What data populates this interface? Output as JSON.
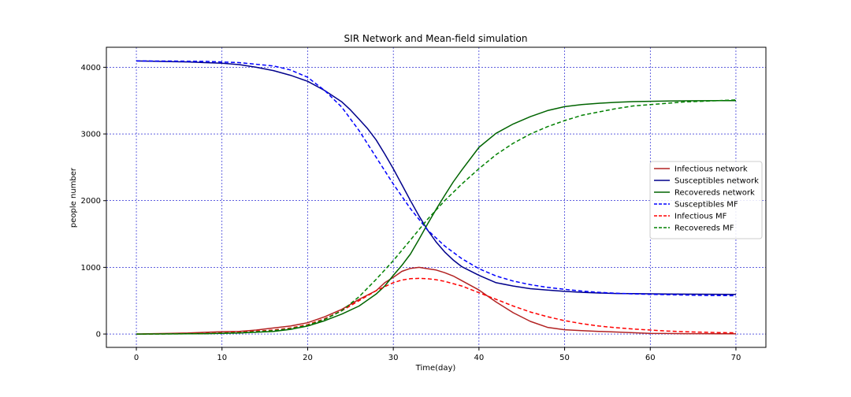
{
  "chart_data": {
    "type": "line",
    "title": "SIR Network and Mean-field simulation",
    "xlabel": "Time(day)",
    "ylabel": "people number",
    "xlim": [
      -3.5,
      73.5
    ],
    "ylim": [
      -200,
      4300
    ],
    "xticks": [
      0,
      10,
      20,
      30,
      40,
      50,
      60,
      70
    ],
    "yticks": [
      0,
      1000,
      2000,
      3000,
      4000
    ],
    "grid": true,
    "grid_color": "#0000cc",
    "legend_position": "center-right",
    "series": [
      {
        "name": "Infectious network",
        "color": "#b22222",
        "dash": "solid",
        "x": [
          0,
          2,
          4,
          6,
          8,
          10,
          12,
          14,
          16,
          18,
          20,
          22,
          24,
          26,
          28,
          29,
          30,
          31,
          32,
          33,
          34,
          35,
          36,
          37,
          38,
          40,
          42,
          44,
          46,
          48,
          50,
          52,
          54,
          56,
          58,
          60,
          62,
          64,
          66,
          68,
          70
        ],
        "y": [
          0,
          5,
          10,
          15,
          25,
          35,
          40,
          60,
          90,
          120,
          170,
          260,
          370,
          520,
          650,
          770,
          850,
          940,
          985,
          1000,
          980,
          960,
          920,
          870,
          800,
          660,
          480,
          320,
          190,
          100,
          65,
          50,
          40,
          30,
          20,
          10,
          8,
          6,
          5,
          4,
          3
        ]
      },
      {
        "name": "Susceptibles network",
        "color": "#00008b",
        "dash": "solid",
        "x": [
          0,
          2,
          4,
          6,
          8,
          10,
          12,
          14,
          16,
          18,
          20,
          22,
          24,
          25,
          26,
          27,
          28,
          29,
          30,
          31,
          32,
          33,
          34,
          35,
          36,
          37,
          38,
          40,
          42,
          44,
          46,
          48,
          50,
          52,
          54,
          56,
          58,
          60,
          62,
          64,
          66,
          68,
          70
        ],
        "y": [
          4095,
          4090,
          4085,
          4080,
          4070,
          4060,
          4040,
          4000,
          3950,
          3880,
          3790,
          3650,
          3480,
          3360,
          3220,
          3080,
          2910,
          2700,
          2480,
          2240,
          2000,
          1770,
          1560,
          1380,
          1230,
          1110,
          1010,
          880,
          770,
          720,
          680,
          660,
          640,
          625,
          615,
          608,
          605,
          603,
          600,
          598,
          597,
          596,
          595
        ]
      },
      {
        "name": "Recovereds network",
        "color": "#006400",
        "dash": "solid",
        "x": [
          0,
          4,
          8,
          12,
          16,
          18,
          20,
          22,
          24,
          26,
          28,
          29,
          30,
          31,
          32,
          33,
          34,
          35,
          36,
          37,
          38,
          40,
          42,
          44,
          46,
          48,
          50,
          52,
          54,
          56,
          58,
          60,
          62,
          64,
          66,
          68,
          70
        ],
        "y": [
          0,
          2,
          5,
          15,
          40,
          70,
          120,
          200,
          300,
          420,
          600,
          720,
          880,
          1030,
          1200,
          1420,
          1650,
          1870,
          2080,
          2280,
          2460,
          2800,
          3010,
          3150,
          3260,
          3350,
          3410,
          3440,
          3460,
          3475,
          3485,
          3490,
          3495,
          3497,
          3498,
          3499,
          3500
        ]
      },
      {
        "name": "Susceptibles MF",
        "color": "#0000ff",
        "dash": "dashed",
        "x": [
          0,
          4,
          8,
          12,
          16,
          18,
          20,
          22,
          24,
          26,
          28,
          30,
          32,
          34,
          36,
          38,
          40,
          42,
          44,
          46,
          48,
          50,
          52,
          54,
          56,
          58,
          60,
          62,
          64,
          66,
          68,
          70
        ],
        "y": [
          4095,
          4093,
          4088,
          4070,
          4020,
          3960,
          3850,
          3650,
          3400,
          3050,
          2650,
          2250,
          1880,
          1560,
          1320,
          1130,
          980,
          870,
          795,
          740,
          700,
          670,
          645,
          625,
          612,
          602,
          595,
          590,
          585,
          580,
          577,
          575
        ]
      },
      {
        "name": "Infectious MF",
        "color": "#ff0000",
        "dash": "dashed",
        "x": [
          0,
          4,
          8,
          12,
          16,
          18,
          20,
          22,
          24,
          26,
          28,
          30,
          31,
          32,
          33,
          34,
          35,
          36,
          38,
          40,
          42,
          44,
          46,
          48,
          50,
          52,
          54,
          56,
          58,
          60,
          62,
          64,
          66,
          68,
          70
        ],
        "y": [
          0,
          3,
          8,
          25,
          60,
          90,
          140,
          230,
          350,
          500,
          650,
          770,
          810,
          830,
          835,
          830,
          815,
          790,
          720,
          620,
          520,
          420,
          330,
          260,
          200,
          155,
          120,
          95,
          75,
          60,
          45,
          35,
          28,
          22,
          18
        ]
      },
      {
        "name": "Recovereds MF",
        "color": "#008000",
        "dash": "dashed",
        "x": [
          0,
          4,
          8,
          12,
          16,
          18,
          20,
          22,
          24,
          26,
          28,
          30,
          32,
          34,
          36,
          38,
          40,
          42,
          44,
          46,
          48,
          50,
          52,
          54,
          56,
          58,
          60,
          62,
          64,
          66,
          68,
          70
        ],
        "y": [
          0,
          2,
          6,
          20,
          50,
          80,
          130,
          220,
          350,
          560,
          820,
          1100,
          1410,
          1720,
          2000,
          2250,
          2480,
          2690,
          2860,
          3000,
          3110,
          3200,
          3280,
          3330,
          3380,
          3420,
          3440,
          3460,
          3480,
          3490,
          3500,
          3510
        ]
      }
    ]
  }
}
